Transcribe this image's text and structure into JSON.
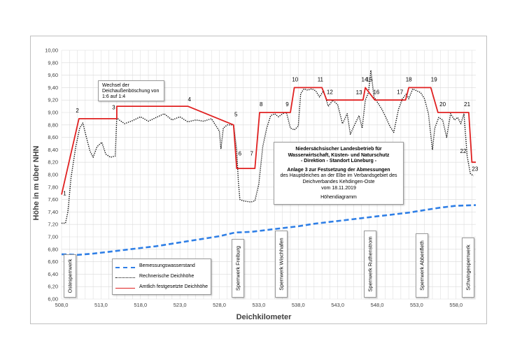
{
  "colors": {
    "bemessung": "#2f7fe6",
    "rechnerisch": "#000000",
    "amtlich": "#e02020",
    "grid": "#d9d9d9"
  },
  "chart_data": {
    "type": "line",
    "xlabel": "Deichkilometer",
    "ylabel": "Höhe in m über NHN",
    "xlim": [
      508.0,
      560.5
    ],
    "ylim": [
      6.0,
      10.0
    ],
    "x_ticks": [
      "508,0",
      "513,0",
      "518,0",
      "523,0",
      "528,0",
      "533,0",
      "538,0",
      "543,0",
      "548,0",
      "553,0",
      "558,0"
    ],
    "y_ticks": [
      "6,00",
      "6,20",
      "6,40",
      "6,60",
      "6,80",
      "7,00",
      "7,20",
      "7,40",
      "7,60",
      "7,80",
      "8,00",
      "8,20",
      "8,40",
      "8,60",
      "8,80",
      "9,00",
      "9,20",
      "9,40",
      "9,60",
      "9,80",
      "10,00"
    ],
    "grid": true,
    "legend": {
      "position": "bottom-left",
      "entries": [
        "Bemessungswasserstand",
        "Rechnerische Deichhöhe",
        "Amtlich festgesetzte Deichhöhe"
      ]
    },
    "series": [
      {
        "name": "Bemessungswasserstand",
        "style": "dashed",
        "x": [
          508.0,
          510.0,
          512.0,
          514.0,
          516.0,
          518.0,
          520.0,
          522.0,
          524.0,
          526.0,
          528.0,
          530.0,
          532.0,
          534.0,
          536.0,
          538.0,
          540.0,
          542.0,
          544.0,
          546.0,
          548.0,
          550.0,
          552.0,
          554.0,
          556.0,
          558.0,
          560.5
        ],
        "values": [
          6.72,
          6.71,
          6.73,
          6.76,
          6.79,
          6.82,
          6.85,
          6.89,
          6.93,
          6.97,
          7.01,
          7.07,
          7.08,
          7.11,
          7.14,
          7.17,
          7.21,
          7.24,
          7.27,
          7.3,
          7.33,
          7.36,
          7.39,
          7.43,
          7.47,
          7.5,
          7.51
        ]
      },
      {
        "name": "Rechnerische Deichhöhe",
        "style": "dotted",
        "x": [
          508.0,
          508.5,
          508.8,
          509.2,
          509.8,
          510.3,
          510.7,
          511.1,
          511.6,
          512.0,
          512.5,
          513.1,
          513.6,
          514.2,
          514.8,
          515.0,
          515.3,
          516.0,
          517.0,
          518.0,
          519.0,
          520.0,
          521.0,
          522.0,
          523.0,
          524.0,
          525.0,
          526.0,
          527.0,
          528.0,
          528.2,
          528.5,
          529.0,
          529.8,
          530.2,
          530.4,
          530.6,
          531.0,
          532.0,
          532.5,
          533.0,
          533.5,
          534.0,
          534.5,
          535.0,
          535.5,
          536.0,
          536.5,
          537.0,
          537.5,
          538.0,
          538.3,
          538.7,
          539.2,
          539.7,
          540.2,
          540.7,
          541.2,
          541.8,
          542.4,
          543.0,
          543.6,
          544.2,
          544.6,
          545.2,
          545.7,
          546.1,
          546.5,
          546.9,
          547.2,
          547.6,
          548.1,
          548.6,
          549.1,
          549.6,
          550.1,
          550.7,
          551.2,
          551.7,
          552.0,
          552.5,
          553.0,
          553.5,
          554.0,
          554.5,
          555.0,
          555.3,
          555.8,
          556.3,
          556.8,
          557.3,
          557.8,
          558.2,
          558.6,
          559.0,
          559.4,
          559.8,
          560.2
        ],
        "values": [
          7.22,
          7.22,
          7.4,
          7.95,
          8.45,
          8.75,
          8.83,
          8.62,
          8.38,
          8.28,
          8.45,
          8.52,
          8.33,
          8.28,
          8.3,
          8.92,
          8.88,
          8.82,
          8.87,
          8.93,
          8.86,
          8.92,
          8.98,
          8.88,
          8.93,
          8.85,
          8.88,
          8.86,
          8.9,
          8.7,
          8.42,
          8.75,
          8.8,
          8.8,
          8.4,
          7.9,
          7.6,
          7.58,
          7.56,
          7.58,
          7.85,
          8.45,
          8.75,
          8.95,
          8.98,
          8.93,
          8.98,
          9.0,
          8.75,
          8.72,
          8.78,
          9.3,
          9.38,
          9.36,
          9.38,
          9.35,
          9.25,
          9.35,
          9.1,
          9.2,
          9.12,
          8.82,
          8.98,
          8.65,
          8.82,
          8.95,
          8.75,
          9.2,
          9.32,
          9.68,
          9.25,
          9.15,
          9.05,
          8.92,
          8.78,
          8.68,
          9.05,
          9.22,
          9.3,
          9.22,
          9.38,
          9.35,
          9.32,
          9.22,
          8.98,
          8.4,
          8.75,
          8.92,
          8.88,
          8.6,
          8.98,
          8.88,
          8.92,
          8.82,
          8.98,
          8.3,
          8.02,
          7.98
        ]
      },
      {
        "name": "Amtlich festgesetzte Deichhöhe",
        "style": "solid",
        "x": [
          508.0,
          510.2,
          515.0,
          515.0,
          524.0,
          529.8,
          530.2,
          532.5,
          533.1,
          537.0,
          537.5,
          541.0,
          541.6,
          546.2,
          546.5,
          547.7,
          548.2,
          551.6,
          552.0,
          554.8,
          555.7,
          559.6,
          560.0,
          560.5
        ],
        "values": [
          7.68,
          8.9,
          8.9,
          9.1,
          9.1,
          8.8,
          8.1,
          8.1,
          9.0,
          9.0,
          9.4,
          9.4,
          9.2,
          9.2,
          9.4,
          9.2,
          9.2,
          9.2,
          9.4,
          9.4,
          9.0,
          9.0,
          8.2,
          8.2
        ]
      }
    ],
    "point_labels": [
      {
        "text": "1",
        "x": 508.4,
        "y": 7.67
      },
      {
        "text": "2",
        "x": 510.0,
        "y": 9.0
      },
      {
        "text": "3",
        "x": 514.6,
        "y": 9.05
      },
      {
        "text": "4",
        "x": 524.2,
        "y": 9.18
      },
      {
        "text": "5",
        "x": 530.1,
        "y": 8.94
      },
      {
        "text": "6",
        "x": 530.6,
        "y": 8.31
      },
      {
        "text": "7",
        "x": 532.1,
        "y": 8.31
      },
      {
        "text": "8",
        "x": 533.3,
        "y": 9.1
      },
      {
        "text": "9",
        "x": 536.6,
        "y": 9.1
      },
      {
        "text": "10",
        "x": 537.6,
        "y": 9.5
      },
      {
        "text": "11",
        "x": 540.8,
        "y": 9.5
      },
      {
        "text": "12",
        "x": 542.0,
        "y": 9.3
      },
      {
        "text": "13",
        "x": 545.7,
        "y": 9.29
      },
      {
        "text": "14",
        "x": 546.4,
        "y": 9.5
      },
      {
        "text": "15",
        "x": 547.0,
        "y": 9.5
      },
      {
        "text": "16",
        "x": 547.9,
        "y": 9.3
      },
      {
        "text": "17",
        "x": 550.9,
        "y": 9.3
      },
      {
        "text": "18",
        "x": 552.0,
        "y": 9.5
      },
      {
        "text": "19",
        "x": 555.2,
        "y": 9.5
      },
      {
        "text": "20",
        "x": 556.3,
        "y": 9.1
      },
      {
        "text": "21",
        "x": 559.4,
        "y": 9.1
      },
      {
        "text": "22",
        "x": 558.9,
        "y": 8.35
      },
      {
        "text": "23",
        "x": 560.4,
        "y": 8.06
      }
    ],
    "annotations": {
      "info_lines": [
        "Niedersächsischer Landesbetrieb für",
        "Wasserwirtschaft,  Küsten- und Naturschutz",
        "- Direktion - Standort Lüneburg -",
        "",
        "Anlage 3 zur Festsetzung der Abmessungen",
        "des Hauptdeiches an der Elbe im Verbandsgebiet des",
        "Deichverbandes Kehdingen-Oste",
        "vom 18.11.2019",
        "",
        "Höhendiagramm"
      ],
      "note_lines": [
        "Wechsel der",
        "Deichaußenböschung von",
        "1:6 auf 1:4"
      ],
      "sluices": [
        {
          "label": "Ostesperrwerk",
          "x": 509.0
        },
        {
          "label": "Sperrwerk Freiburg",
          "x": 530.3
        },
        {
          "label": "Sperrwerk Wischhafen",
          "x": 535.8
        },
        {
          "label": "Sperrwerk Ruthenstrom",
          "x": 547.0
        },
        {
          "label": "Sperrwerk Abbenfleth",
          "x": 553.6
        },
        {
          "label": "Schwingesperrwerk",
          "x": 559.4
        }
      ]
    }
  }
}
